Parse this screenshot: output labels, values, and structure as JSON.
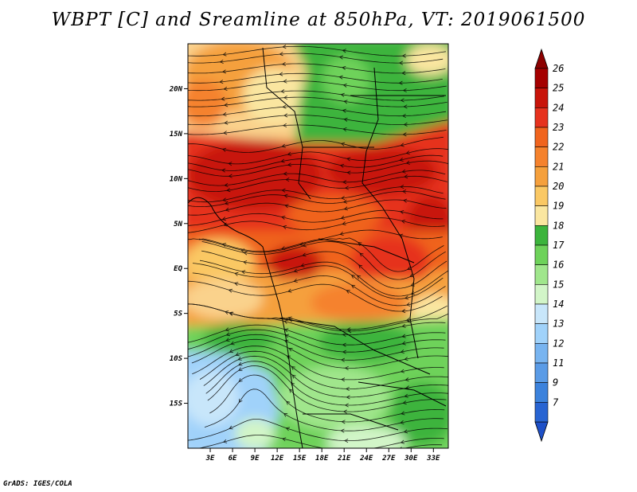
{
  "title": "WBPT [C] and Sreamline at 850hPa, VT: 2019061500",
  "footer": "GrADS: IGES/COLA",
  "chart_data": {
    "type": "heatmap",
    "title": "WBPT [C] and Sreamline at 850hPa, VT: 2019061500",
    "field": "WBPT [C]",
    "level": "850hPa",
    "valid_time": "2019061500",
    "x_ticks": [
      "3E",
      "6E",
      "9E",
      "12E",
      "15E",
      "18E",
      "21E",
      "24E",
      "27E",
      "30E",
      "33E"
    ],
    "x_tick_values": [
      3,
      6,
      9,
      12,
      15,
      18,
      21,
      24,
      27,
      30,
      33
    ],
    "y_ticks": [
      "20N",
      "15N",
      "10N",
      "5N",
      "EQ",
      "5S",
      "10S",
      "15S"
    ],
    "y_tick_values": [
      20,
      15,
      10,
      5,
      0,
      -5,
      -10,
      -15
    ],
    "xlim": [
      0,
      35
    ],
    "ylim": [
      -20,
      25
    ],
    "colorbar": {
      "labels": [
        "26",
        "25",
        "24",
        "23",
        "22",
        "21",
        "20",
        "19",
        "18",
        "17",
        "16",
        "15",
        "14",
        "13",
        "12",
        "11",
        "9",
        "7"
      ],
      "colors": [
        "#a50000",
        "#c8140a",
        "#e6321e",
        "#f0641e",
        "#f5822d",
        "#f5a03c",
        "#fac864",
        "#fae6a0",
        "#3cb43c",
        "#6ed25a",
        "#a0e68c",
        "#d2f5c8",
        "#c8e6fa",
        "#a0d2fa",
        "#78b4f0",
        "#5a9be6",
        "#3c82dc",
        "#2864d2"
      ],
      "top_arrow_color": "#8c0000",
      "bottom_arrow_color": "#1e50c8"
    },
    "regions": [
      {
        "name": "north-warm-zone",
        "value_range": "19-22"
      },
      {
        "name": "northeast-green-zone",
        "value_range": "16-18"
      },
      {
        "name": "central-hot-band",
        "value_range": "23-26"
      },
      {
        "name": "equatorial-warm-zone",
        "value_range": "20-23"
      },
      {
        "name": "southern-green-zone",
        "value_range": "16-18"
      },
      {
        "name": "southwest-cool-zone",
        "value_range": "13-15"
      }
    ]
  }
}
